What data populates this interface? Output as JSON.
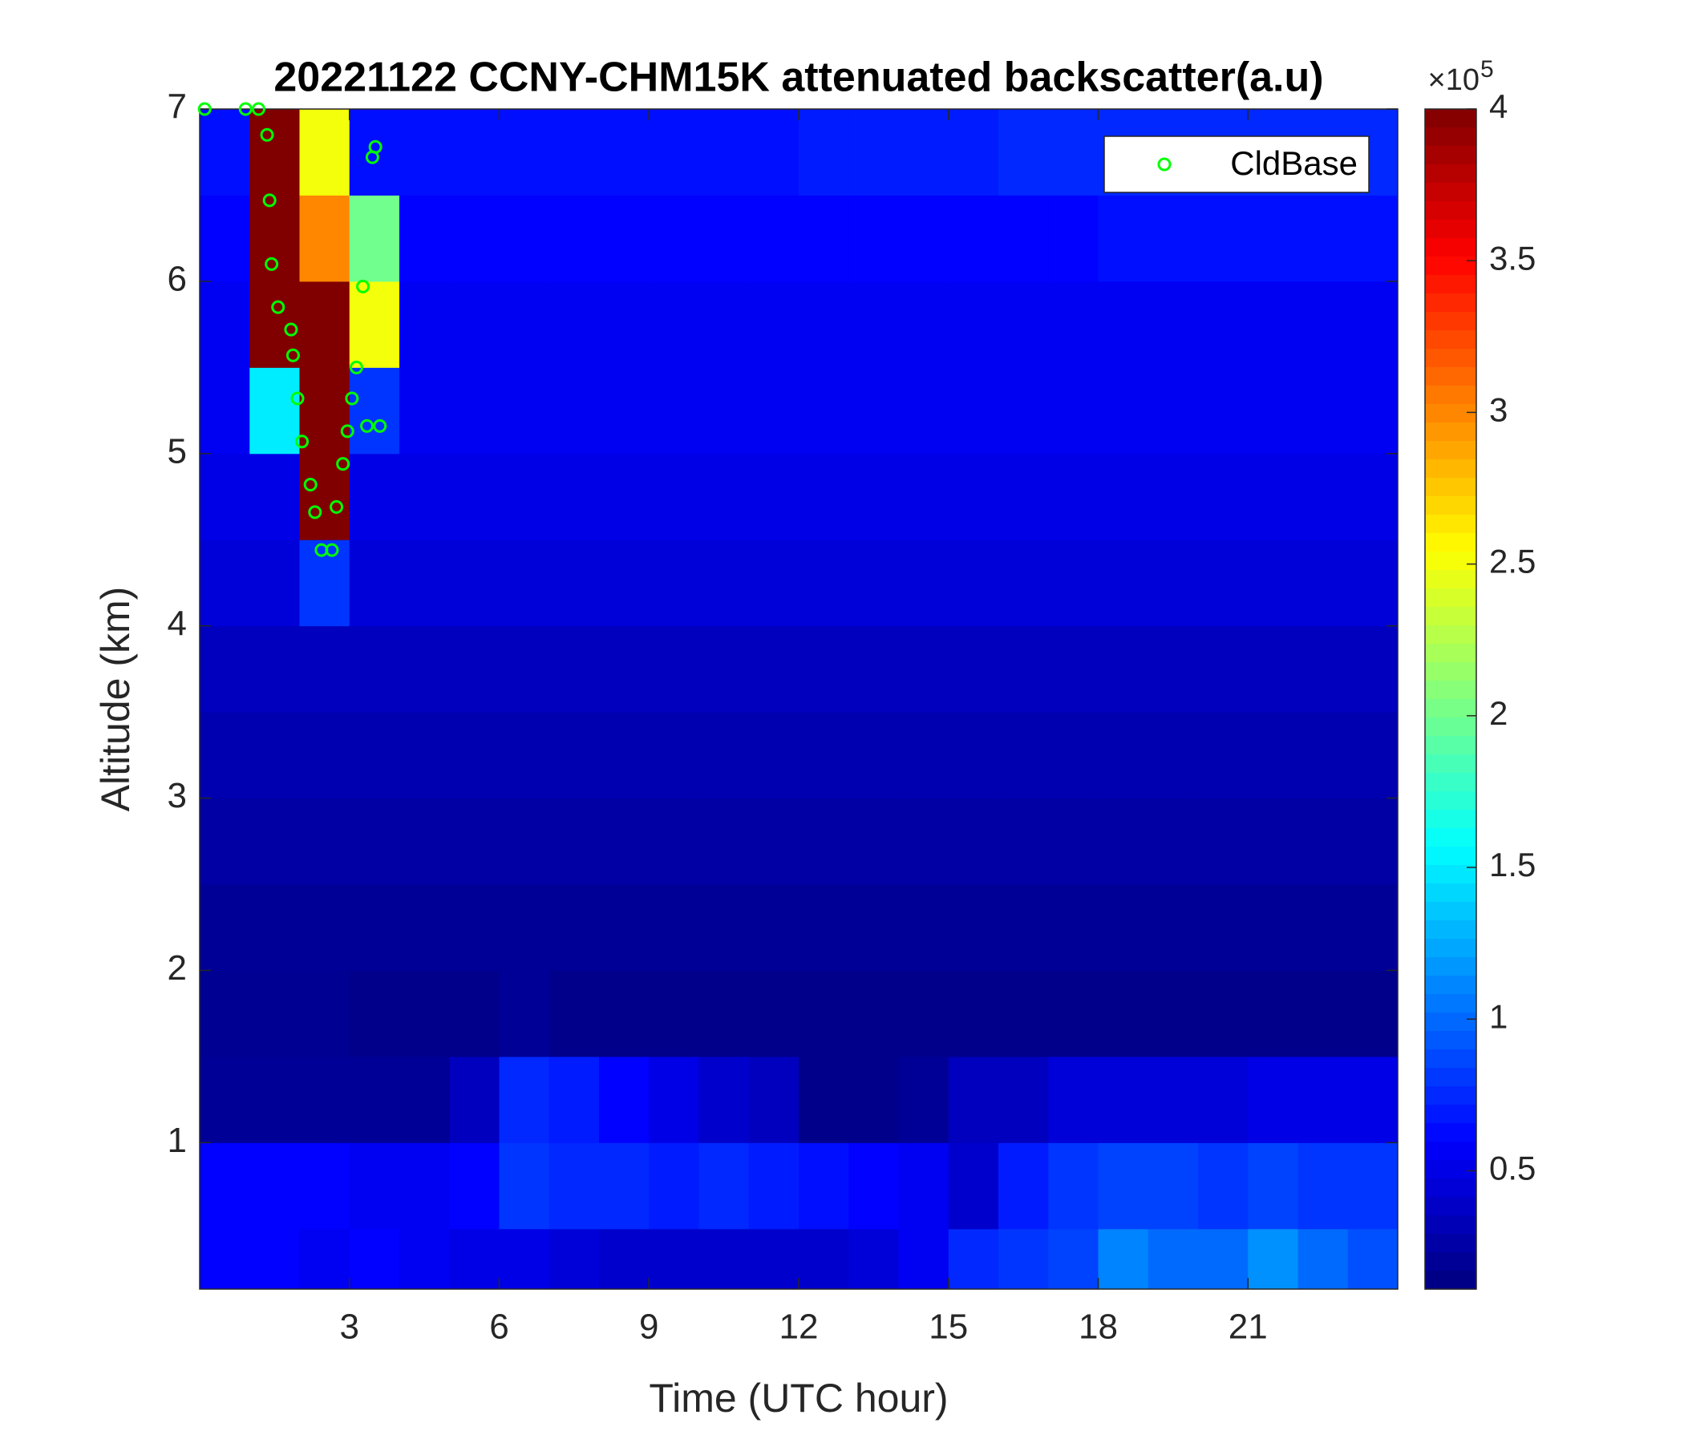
{
  "chart_data": {
    "type": "heatmap",
    "title": "20221122 CCNY-CHM15K attenuated backscatter(a.u)",
    "xlabel": "Time (UTC hour)",
    "ylabel": "Altitude (km)",
    "xlim": [
      0,
      24
    ],
    "ylim": [
      0.15,
      7
    ],
    "xticks": [
      3,
      6,
      9,
      12,
      15,
      18,
      21
    ],
    "yticks": [
      1,
      2,
      3,
      4,
      5,
      6,
      7
    ],
    "colormap": "jet",
    "clim": [
      0.11,
      4
    ],
    "colorbar_ticks": [
      0.5,
      1,
      1.5,
      2,
      2.5,
      3,
      3.5,
      4
    ],
    "colorbar_scale_label": "×10",
    "colorbar_scale_exponent": 5,
    "x_bins": [
      0,
      1,
      2,
      3,
      4,
      5,
      6,
      7,
      8,
      9,
      10,
      11,
      12,
      13,
      14,
      15,
      16,
      17,
      18,
      19,
      20,
      21,
      22,
      23,
      24
    ],
    "y_bins": [
      0.15,
      0.5,
      1,
      1.5,
      2,
      2.5,
      3,
      3.5,
      4,
      4.5,
      5,
      5.5,
      6,
      6.5,
      7
    ],
    "z": [
      [
        0.6,
        0.6,
        0.55,
        0.6,
        0.55,
        0.5,
        0.5,
        0.45,
        0.4,
        0.4,
        0.4,
        0.4,
        0.4,
        0.45,
        0.55,
        0.75,
        0.8,
        0.85,
        1.1,
        1.0,
        1.0,
        1.15,
        1.0,
        0.9
      ],
      [
        0.6,
        0.6,
        0.6,
        0.55,
        0.55,
        0.6,
        0.8,
        0.75,
        0.75,
        0.7,
        0.75,
        0.7,
        0.65,
        0.6,
        0.55,
        0.4,
        0.7,
        0.8,
        0.85,
        0.85,
        0.8,
        0.85,
        0.8,
        0.8
      ],
      [
        0.2,
        0.2,
        0.2,
        0.2,
        0.2,
        0.35,
        0.75,
        0.7,
        0.6,
        0.5,
        0.4,
        0.35,
        0.15,
        0.15,
        0.2,
        0.35,
        0.35,
        0.45,
        0.45,
        0.45,
        0.45,
        0.5,
        0.5,
        0.5
      ],
      [
        0.18,
        0.18,
        0.18,
        0.15,
        0.15,
        0.15,
        0.2,
        0.15,
        0.15,
        0.15,
        0.15,
        0.15,
        0.15,
        0.15,
        0.15,
        0.15,
        0.15,
        0.15,
        0.15,
        0.15,
        0.15,
        0.15,
        0.15,
        0.15
      ],
      [
        0.2,
        0.2,
        0.2,
        0.2,
        0.2,
        0.2,
        0.2,
        0.2,
        0.2,
        0.2,
        0.2,
        0.2,
        0.2,
        0.2,
        0.2,
        0.2,
        0.2,
        0.2,
        0.2,
        0.2,
        0.2,
        0.2,
        0.2,
        0.2
      ],
      [
        0.25,
        0.25,
        0.25,
        0.25,
        0.25,
        0.25,
        0.25,
        0.25,
        0.25,
        0.25,
        0.25,
        0.25,
        0.25,
        0.25,
        0.25,
        0.25,
        0.25,
        0.25,
        0.25,
        0.25,
        0.25,
        0.25,
        0.25,
        0.25
      ],
      [
        0.3,
        0.3,
        0.3,
        0.3,
        0.3,
        0.3,
        0.3,
        0.3,
        0.3,
        0.3,
        0.3,
        0.3,
        0.3,
        0.3,
        0.3,
        0.3,
        0.3,
        0.3,
        0.3,
        0.3,
        0.3,
        0.3,
        0.3,
        0.3
      ],
      [
        0.35,
        0.35,
        0.35,
        0.35,
        0.35,
        0.35,
        0.35,
        0.35,
        0.35,
        0.35,
        0.35,
        0.35,
        0.35,
        0.35,
        0.35,
        0.35,
        0.35,
        0.35,
        0.35,
        0.35,
        0.35,
        0.35,
        0.35,
        0.35
      ],
      [
        0.45,
        0.45,
        0.8,
        0.45,
        0.45,
        0.45,
        0.45,
        0.45,
        0.45,
        0.45,
        0.45,
        0.45,
        0.45,
        0.45,
        0.45,
        0.45,
        0.45,
        0.45,
        0.45,
        0.45,
        0.45,
        0.45,
        0.45,
        0.45
      ],
      [
        0.5,
        0.5,
        4,
        0.5,
        0.5,
        0.5,
        0.5,
        0.5,
        0.5,
        0.5,
        0.5,
        0.5,
        0.5,
        0.5,
        0.5,
        0.5,
        0.5,
        0.5,
        0.5,
        0.5,
        0.5,
        0.5,
        0.5,
        0.5
      ],
      [
        0.55,
        1.5,
        4,
        0.8,
        0.55,
        0.55,
        0.55,
        0.55,
        0.55,
        0.55,
        0.55,
        0.55,
        0.55,
        0.55,
        0.55,
        0.55,
        0.55,
        0.55,
        0.55,
        0.55,
        0.55,
        0.55,
        0.55,
        0.55
      ],
      [
        0.55,
        4,
        4,
        2.5,
        0.55,
        0.55,
        0.55,
        0.55,
        0.55,
        0.55,
        0.55,
        0.55,
        0.55,
        0.55,
        0.55,
        0.55,
        0.55,
        0.55,
        0.55,
        0.55,
        0.55,
        0.55,
        0.55,
        0.55
      ],
      [
        0.6,
        4,
        3,
        2,
        0.6,
        0.6,
        0.6,
        0.6,
        0.6,
        0.6,
        0.6,
        0.6,
        0.6,
        0.6,
        0.6,
        0.6,
        0.6,
        0.6,
        0.65,
        0.65,
        0.65,
        0.65,
        0.65,
        0.65
      ],
      [
        0.65,
        4,
        2.5,
        0.65,
        0.65,
        0.65,
        0.65,
        0.65,
        0.65,
        0.65,
        0.65,
        0.65,
        0.7,
        0.7,
        0.7,
        0.7,
        0.75,
        0.75,
        0.75,
        0.75,
        0.75,
        0.75,
        0.75,
        0.75
      ]
    ],
    "series": [
      {
        "name": "CldBase",
        "color": "#00ff00",
        "type": "scatter",
        "x": [
          0.1,
          0.92,
          1.18,
          1.35,
          1.4,
          1.44,
          1.57,
          1.83,
          1.87,
          1.96,
          2.05,
          2.22,
          2.31,
          2.44,
          2.65,
          2.74,
          2.87,
          2.96,
          3.05,
          3.14,
          3.27,
          3.35,
          3.61,
          3.46,
          3.52
        ],
        "values": [
          7.0,
          7.0,
          7.0,
          6.85,
          6.47,
          6.1,
          5.85,
          5.72,
          5.57,
          5.32,
          5.07,
          4.82,
          4.66,
          4.44,
          4.44,
          4.69,
          4.94,
          5.13,
          5.32,
          5.5,
          5.97,
          5.16,
          5.16,
          6.72,
          6.78
        ]
      }
    ],
    "legend": "upper right"
  }
}
